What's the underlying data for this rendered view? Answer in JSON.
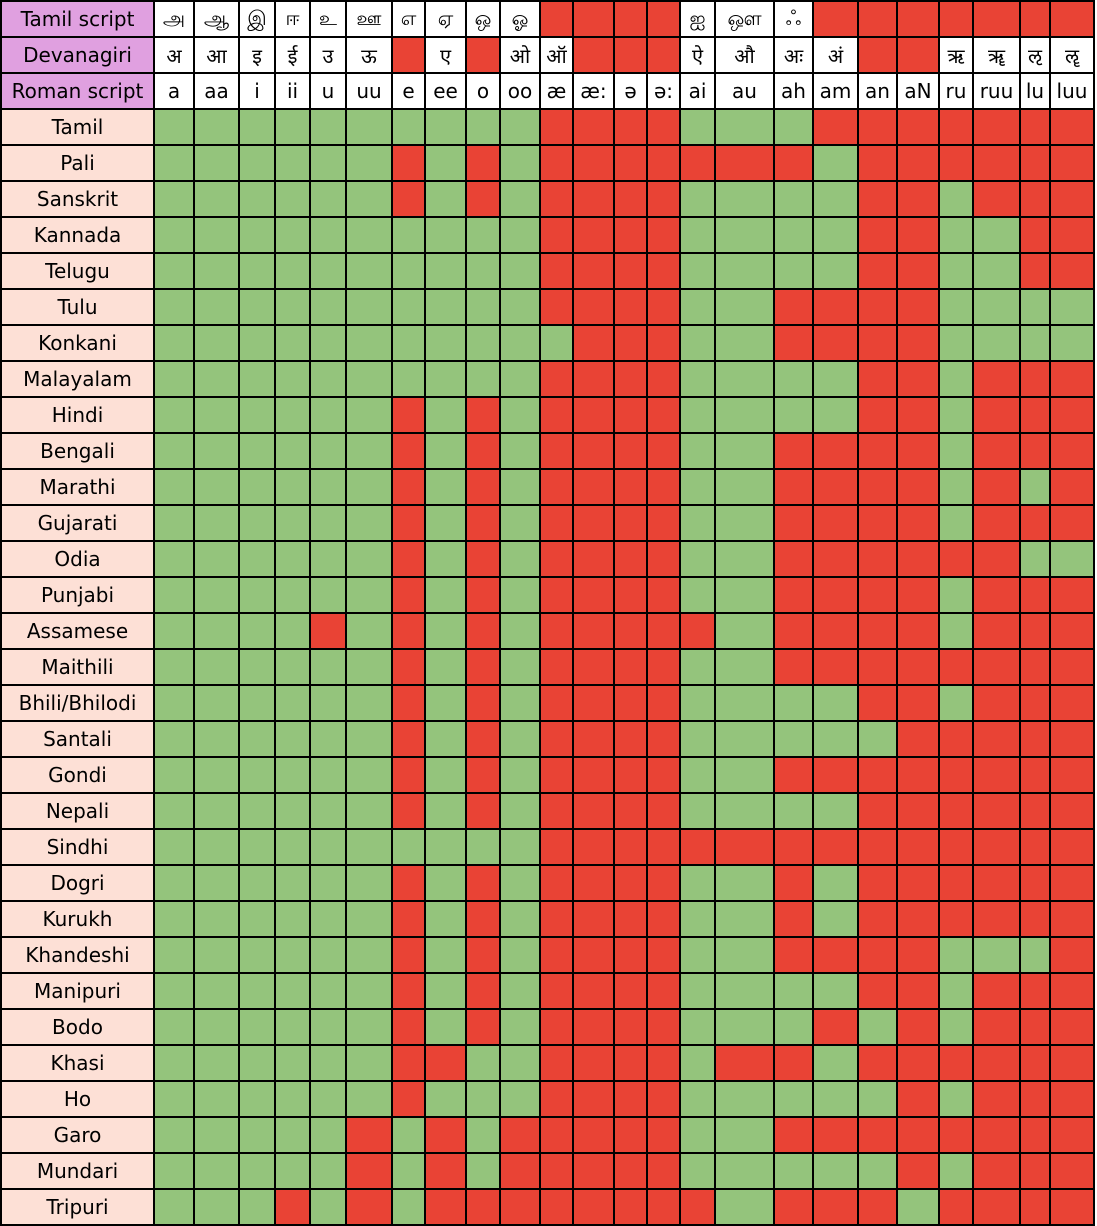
{
  "chart_data": {
    "type": "table",
    "row_headers": [
      "Tamil script",
      "Devanagiri",
      "Roman script"
    ],
    "tamil_script": [
      "அ",
      "ஆ",
      "இ",
      "ஈ",
      "உ",
      "ஊ",
      "எ",
      "ஏ",
      "ஒ",
      "ஓ",
      "",
      "",
      "",
      "",
      "ஐ",
      "ஔ",
      "ஃ",
      "",
      "",
      "",
      "",
      "",
      "",
      ""
    ],
    "devanagiri": [
      "अ",
      "आ",
      "इ",
      "ई",
      "उ",
      "ऊ",
      "",
      "ए",
      "",
      "ओ",
      "ऑ",
      "",
      "",
      "",
      "ऐ",
      "औ",
      "अः",
      "अं",
      "",
      "",
      "ऋ",
      "ॠ",
      "ऌ",
      "ॡ"
    ],
    "roman": [
      "a",
      "aa",
      "i",
      "ii",
      "u",
      "uu",
      "e",
      "ee",
      "o",
      "oo",
      "æ",
      "æ:",
      "ə",
      "ə:",
      "ai",
      "au",
      "ah",
      "am",
      "an",
      "aN",
      "ru",
      "ruu",
      "lu",
      "luu"
    ],
    "languages": [
      {
        "name": "Tamil",
        "cells": "GGGGGGGGGGRRRRGGGRRRRRRR"
      },
      {
        "name": "Pali",
        "cells": "GGGGGGRGRGRRRRRRRGRRRRRR"
      },
      {
        "name": "Sanskrit",
        "cells": "GGGGGGRGRGRRRRGGGGRRGRRR"
      },
      {
        "name": "Kannada",
        "cells": "GGGGGGGGGGRRRRGGGGRRGGRR"
      },
      {
        "name": "Telugu",
        "cells": "GGGGGGGGGGRRRRGGGGRRGGRR"
      },
      {
        "name": "Tulu",
        "cells": "GGGGGGGGGGRRRRGGRRRRGGGG"
      },
      {
        "name": "Konkani",
        "cells": "GGGGGGGGGGGRRRGGRRRRGGGG"
      },
      {
        "name": "Malayalam",
        "cells": "GGGGGGGGGGRRRRGGGGRRGRRR"
      },
      {
        "name": "Hindi",
        "cells": "GGGGGGRGRGRRRRGGGGRRGRRR"
      },
      {
        "name": "Bengali",
        "cells": "GGGGGGRGRGRRRRGGRRRRGRRR"
      },
      {
        "name": "Marathi",
        "cells": "GGGGGGRGRGRRRRGGRRRRGRGR"
      },
      {
        "name": "Gujarati",
        "cells": "GGGGGGRGRGRRRRGGRRRRGRRR"
      },
      {
        "name": "Odia",
        "cells": "GGGGGGRGRGRRRRGGRRRRRRGG"
      },
      {
        "name": "Punjabi",
        "cells": "GGGGGGRGRGRRRRGGRRRRGRRR"
      },
      {
        "name": "Assamese",
        "cells": "GGGGRGRGRGRRRRRGRRRRGRRR"
      },
      {
        "name": "Maithili",
        "cells": "GGGGGGRGRGRRRRGGRRRRRRRR"
      },
      {
        "name": "Bhili/Bhilodi",
        "cells": "GGGGGGRGRGRRRRGGGGRRGRRR"
      },
      {
        "name": "Santali",
        "cells": "GGGGGGRGRGRRRRGGGGGRRRRR"
      },
      {
        "name": "Gondi",
        "cells": "GGGGGGRGRGRRRRGGRRRRRRRR"
      },
      {
        "name": "Nepali",
        "cells": "GGGGGGRGRGRRRRGGGGRRRRRR"
      },
      {
        "name": "Sindhi",
        "cells": "GGGGGGGGGGRRRRRRRRRRRRRR"
      },
      {
        "name": "Dogri",
        "cells": "GGGGGGRGRGRRRRGGRGRRRRRR"
      },
      {
        "name": "Kurukh",
        "cells": "GGGGGGRGRGRRRRGGRGRRRRRR"
      },
      {
        "name": "Khandeshi",
        "cells": "GGGGGGRGRGRRRRGGRRRRGGGR"
      },
      {
        "name": "Manipuri",
        "cells": "GGGGGGRGRGRRRRGGGGRRGRRR"
      },
      {
        "name": "Bodo",
        "cells": "GGGGGGRGRGRRRRGGGRGRGRRR"
      },
      {
        "name": "Khasi",
        "cells": "GGGGGGRRGGRRRRGRRGRRRRRR"
      },
      {
        "name": "Ho",
        "cells": "GGGGGGRGGGRRRRGGGGGRGRRR"
      },
      {
        "name": "Garo",
        "cells": "GGGGGRGRGRRRRRGGRRRRRRRR"
      },
      {
        "name": "Mundari",
        "cells": "GGGGGRGRGRRRRRGGGGGRGRRR"
      },
      {
        "name": "Tripuri",
        "cells": "GGGRGRGRRRRRRRRGRRRGRRRR"
      }
    ],
    "colors": {
      "supported": "#94c47c",
      "unsupported": "#e94335",
      "header_top": "#e0a0e0",
      "header_lang": "#fde0d6"
    }
  }
}
